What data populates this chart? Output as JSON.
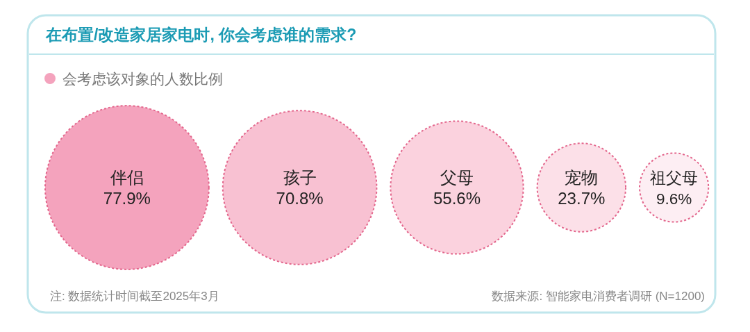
{
  "chart_data": {
    "type": "other",
    "title": "在布置/改造家居家电时, 你会考虑谁的需求?",
    "categories": [
      "伴侣",
      "孩子",
      "父母",
      "宠物",
      "祖父母"
    ],
    "series": [
      {
        "name": "会考虑该对象的人数比例",
        "colors": [
          "#f4a3bd",
          "#f8c1d2",
          "#fbd2de",
          "#fce0e8",
          "#fdeef3"
        ],
        "values": [
          77.9,
          70.8,
          55.6,
          23.7,
          9.6
        ],
        "value_labels": [
          "77.9%",
          "70.8%",
          "55.6%",
          "23.7%",
          "9.6%"
        ]
      }
    ],
    "legend": "top left",
    "annotations": [
      "注: 数据统计时间截至2025年3月",
      "数据来源: 智能家电消费者调研 (N=1200)"
    ]
  }
}
